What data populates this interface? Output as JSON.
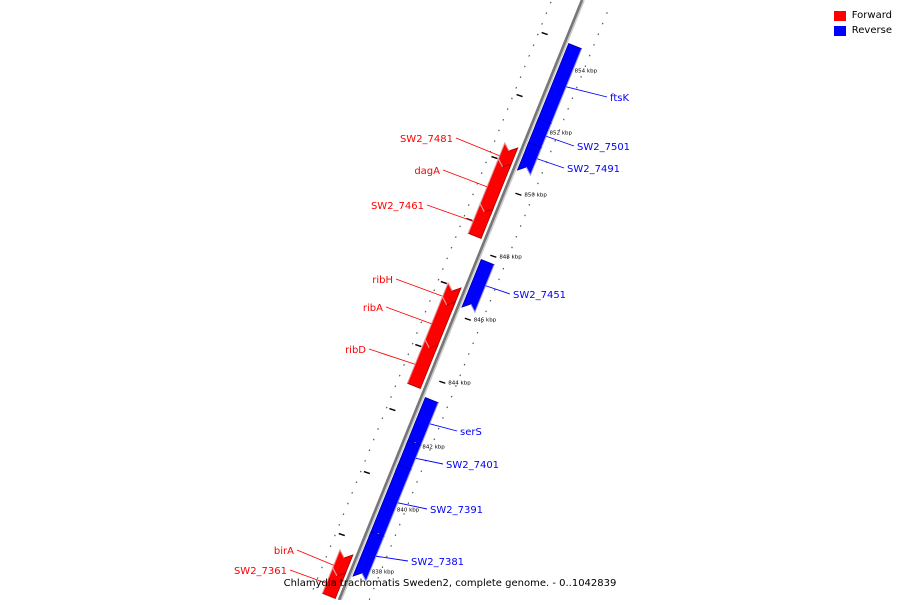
{
  "legend": {
    "forward": {
      "label": "Forward",
      "color": "#ff0000"
    },
    "reverse": {
      "label": "Reverse",
      "color": "#0000ff"
    }
  },
  "caption": "Chlamydia trachomatis Sweden2, complete genome. - 0..1042839",
  "ticks": [
    "838 kbp",
    "840 kbp",
    "842 kbp",
    "844 kbp",
    "846 kbp",
    "848 kbp",
    "850 kbp",
    "852 kbp",
    "854 kbp"
  ],
  "genes": [
    {
      "name": "ftsK",
      "strand": "reverse"
    },
    {
      "name": "SW2_7501",
      "strand": "reverse"
    },
    {
      "name": "SW2_7491",
      "strand": "reverse"
    },
    {
      "name": "SW2_7481",
      "strand": "forward"
    },
    {
      "name": "dagA",
      "strand": "forward"
    },
    {
      "name": "SW2_7461",
      "strand": "forward"
    },
    {
      "name": "SW2_7451",
      "strand": "reverse"
    },
    {
      "name": "ribH",
      "strand": "forward"
    },
    {
      "name": "ribA",
      "strand": "forward"
    },
    {
      "name": "ribD",
      "strand": "forward"
    },
    {
      "name": "serS",
      "strand": "reverse"
    },
    {
      "name": "SW2_7401",
      "strand": "reverse"
    },
    {
      "name": "SW2_7391",
      "strand": "reverse"
    },
    {
      "name": "SW2_7381",
      "strand": "reverse"
    },
    {
      "name": "birA",
      "strand": "forward"
    },
    {
      "name": "SW2_7361",
      "strand": "forward"
    }
  ]
}
